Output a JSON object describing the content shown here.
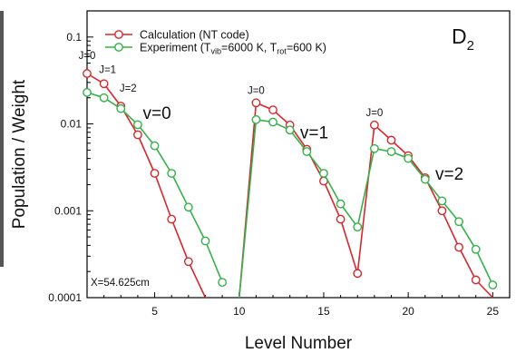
{
  "chart_data": {
    "type": "line",
    "xlabel": "Level Number",
    "ylabel": "Population / Weight",
    "xlim": [
      1,
      26
    ],
    "ylim": [
      0.0001,
      0.2
    ],
    "y_scale": "log",
    "x_ticks": [
      5,
      10,
      15,
      20,
      25
    ],
    "x_tick_labels": [
      "5",
      "10",
      "15",
      "20",
      "25"
    ],
    "y_ticks": [
      0.0001,
      0.001,
      0.01,
      0.1
    ],
    "y_tick_labels": [
      "0.0001",
      "0.001",
      "0.01",
      "0.1"
    ],
    "grid": false,
    "legend_position": "top-left",
    "species_prefix": "D",
    "species_subscript": "2",
    "series": [
      {
        "name": "Calculation (NT code)",
        "color": "#d9262c",
        "segments": [
          {
            "x": [
              1,
              2,
              3,
              4,
              5,
              6,
              7,
              8
            ],
            "y": [
              0.038,
              0.029,
              0.016,
              0.0075,
              0.0027,
              0.0008,
              0.00026,
              0.0001
            ]
          },
          {
            "x": [
              10,
              11,
              12,
              13,
              14,
              15,
              16,
              17,
              18,
              19,
              20,
              21,
              22,
              23,
              24,
              25
            ],
            "y": [
              0.0001,
              0.0175,
              0.0145,
              0.0097,
              0.0051,
              0.0022,
              0.0008,
              0.00019,
              0.0097,
              0.0065,
              0.0043,
              0.0024,
              0.001,
              0.00038,
              0.00016,
              0.0001
            ]
          }
        ]
      },
      {
        "name": "Experiment",
        "legend_parts": [
          "Experiment (T",
          "vib",
          "=6000 K, T",
          "rot",
          "=600 K)"
        ],
        "color": "#33b24a",
        "segments": [
          {
            "x": [
              1,
              2,
              3,
              4,
              5,
              6,
              7,
              8,
              9
            ],
            "y": [
              0.023,
              0.02,
              0.015,
              0.0098,
              0.0056,
              0.0027,
              0.0011,
              0.00045,
              0.00015
            ]
          },
          {
            "x": [
              10,
              11,
              12,
              13,
              14,
              15,
              16,
              17,
              18,
              19,
              20,
              21,
              22,
              23,
              24,
              25
            ],
            "y": [
              0.0001,
              0.0112,
              0.0105,
              0.0085,
              0.0048,
              0.0027,
              0.0012,
              0.00065,
              0.0052,
              0.0048,
              0.004,
              0.0023,
              0.0013,
              0.00075,
              0.00036,
              0.00014
            ]
          }
        ]
      }
    ],
    "annotations": [
      {
        "text": "J=0",
        "x": 1,
        "y": 0.038,
        "style": "small",
        "placement": "upper"
      },
      {
        "text": "J=1",
        "x": 2,
        "y": 0.029,
        "style": "small",
        "placement": "upper"
      },
      {
        "text": "J=2",
        "x": 3,
        "y": 0.016,
        "style": "small",
        "placement": "upper"
      },
      {
        "text": "v=0",
        "x": 4.3,
        "y": 0.0135,
        "style": "big"
      },
      {
        "text": "J=0",
        "x": 11,
        "y": 0.0175,
        "style": "small",
        "placement": "upper"
      },
      {
        "text": "v=1",
        "x": 13.6,
        "y": 0.0081,
        "style": "big"
      },
      {
        "text": "J=0",
        "x": 18,
        "y": 0.0097,
        "style": "small",
        "placement": "upper"
      },
      {
        "text": "v=2",
        "x": 21.6,
        "y": 0.0027,
        "style": "big"
      },
      {
        "text": "X=54.625cm",
        "x": 1.2,
        "y": 0.00013,
        "style": "small"
      }
    ]
  }
}
